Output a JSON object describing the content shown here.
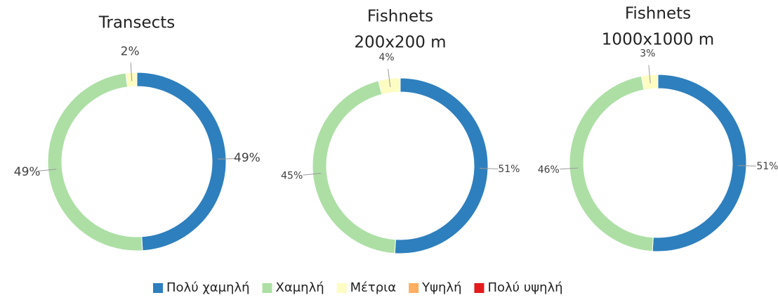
{
  "chart_data": [
    {
      "type": "pie",
      "title": [
        "Transects"
      ],
      "categories": [
        "Πολύ χαμηλή",
        "Χαμηλή",
        "Μέτρια",
        "Υψηλή",
        "Πολύ υψηλή"
      ],
      "values": [
        49,
        49,
        2,
        0,
        0
      ],
      "value_labels": [
        "49%",
        "49%",
        "2%",
        null,
        null
      ],
      "colors": [
        "#2e7fbd",
        "#addfa5",
        "#fdfcc2",
        "#fdae61",
        "#e31a1c"
      ]
    },
    {
      "type": "pie",
      "title": [
        "Fishnets",
        "200x200 m"
      ],
      "categories": [
        "Πολύ χαμηλή",
        "Χαμηλή",
        "Μέτρια",
        "Υψηλή",
        "Πολύ υψηλή"
      ],
      "values": [
        51,
        45,
        4,
        0,
        0
      ],
      "value_labels": [
        "51%",
        "45%",
        "4%",
        null,
        null
      ],
      "colors": [
        "#2e7fbd",
        "#addfa5",
        "#fdfcc2",
        "#fdae61",
        "#e31a1c"
      ]
    },
    {
      "type": "pie",
      "title": [
        "Fishnets",
        "1000x1000 m"
      ],
      "categories": [
        "Πολύ χαμηλή",
        "Χαμηλή",
        "Μέτρια",
        "Υψηλή",
        "Πολύ υψηλή"
      ],
      "values": [
        51,
        46,
        3,
        0,
        0
      ],
      "value_labels": [
        "51%",
        "46%",
        "3%",
        null,
        null
      ],
      "colors": [
        "#2e7fbd",
        "#addfa5",
        "#fdfcc2",
        "#fdae61",
        "#e31a1c"
      ]
    }
  ]
}
